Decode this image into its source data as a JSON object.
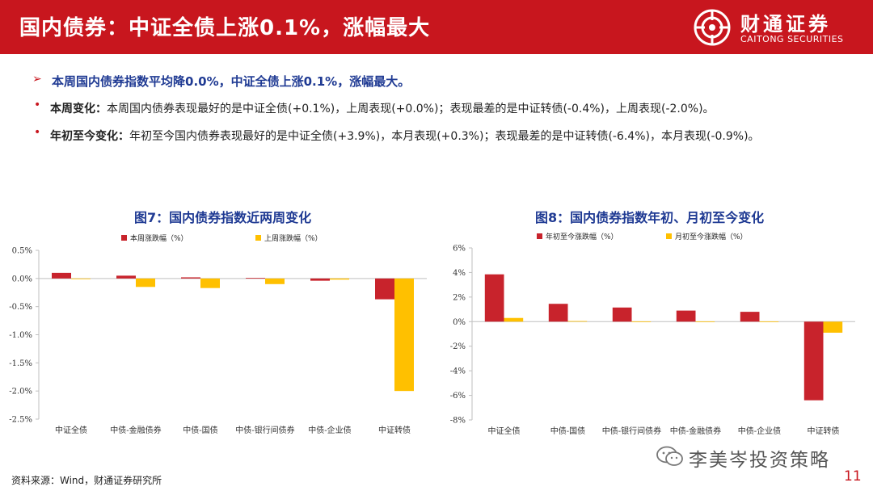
{
  "header": {
    "title": "国内债券：中证全债上涨0.1%，涨幅最大"
  },
  "logo": {
    "cn": "财通证券",
    "en": "CAITONG SECURITIES"
  },
  "bullets": {
    "main": "本周国内债券指数平均降0.0%，中证全债上涨0.1%，涨幅最大。",
    "items": [
      {
        "key": "本周变化：",
        "text": "本周国内债券表现最好的是中证全债(+0.1%)，上周表现(+0.0%)；表现最差的是中证转债(-0.4%)，上周表现(-2.0%)。"
      },
      {
        "key": "年初至今变化：",
        "text": "年初至今国内债券表现最好的是中证全债(+3.9%)，本月表现(+0.3%)；表现最差的是中证转债(-6.4%)，本月表现(-0.9%)。"
      }
    ]
  },
  "colors": {
    "brand": "#c8161e",
    "series_primary": "#c8232c",
    "series_secondary": "#ffc000",
    "title_blue": "#1f3a93"
  },
  "chart_data": [
    {
      "type": "bar",
      "title": "图7：国内债券指数近两周变化",
      "categories": [
        "中证全债",
        "中债-金融债券",
        "中债-国债",
        "中债-银行间债券",
        "中债-企业债",
        "中证转债"
      ],
      "series": [
        {
          "name": "本周涨跌幅（%）",
          "values": [
            0.1,
            0.05,
            0.02,
            0.01,
            -0.04,
            -0.37
          ]
        },
        {
          "name": "上周涨跌幅（%）",
          "values": [
            0.0,
            -0.15,
            -0.17,
            -0.1,
            -0.02,
            -2.0
          ]
        }
      ],
      "yticks": [
        "0.5%",
        "0.0%",
        "-0.5%",
        "-1.0%",
        "-1.5%",
        "-2.0%",
        "-2.5%"
      ],
      "ylim": [
        -2.5,
        0.5
      ],
      "grid": false,
      "legend": "top"
    },
    {
      "type": "bar",
      "title": "图8：国内债券指数年初、月初至今变化",
      "categories": [
        "中证全债",
        "中债-国债",
        "中债-银行间债券",
        "中债-金融债券",
        "中债-企业债",
        "中证转债"
      ],
      "series": [
        {
          "name": "年初至今涨跌幅（%）",
          "values": [
            3.85,
            1.45,
            1.15,
            0.9,
            0.8,
            -6.4
          ]
        },
        {
          "name": "月初至今涨跌幅（%）",
          "values": [
            0.3,
            0.05,
            0.02,
            0.02,
            0.02,
            -0.9
          ]
        }
      ],
      "yticks": [
        "6%",
        "4%",
        "2%",
        "0%",
        "-2%",
        "-4%",
        "-6%",
        "-8%"
      ],
      "ylim": [
        -8,
        6
      ],
      "grid": false,
      "legend": "top"
    }
  ],
  "footer": {
    "source": "资料来源：Wind，财通证券研究所",
    "watermark": "李美岑投资策略",
    "page": "11"
  }
}
